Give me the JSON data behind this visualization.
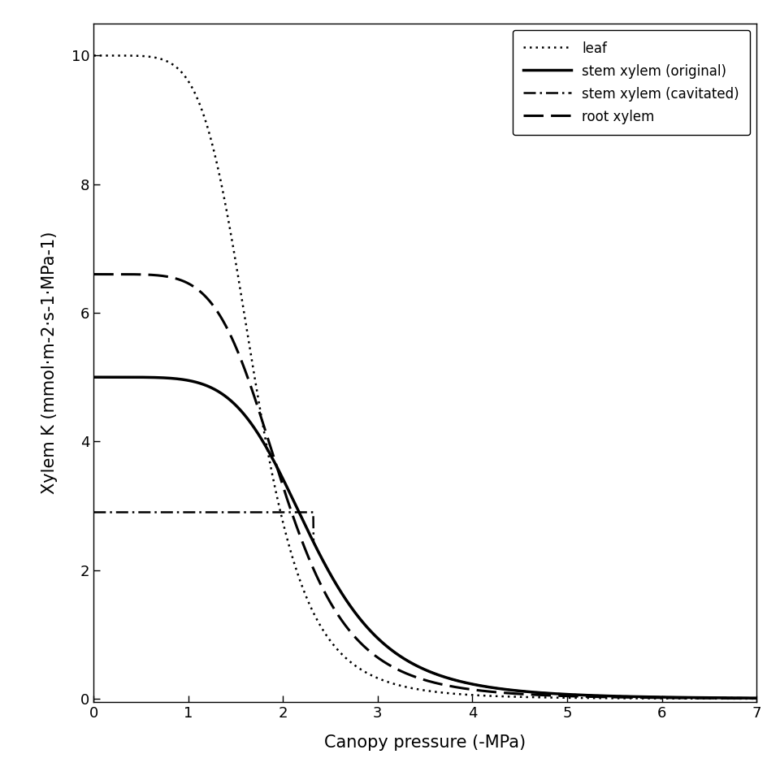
{
  "title": "",
  "xlabel": "Canopy pressure (-MPa)",
  "ylabel": "Xylem K (mmol·m-2·s-1·MPa-1)",
  "xlim": [
    0,
    7
  ],
  "ylim": [
    -0.05,
    10.5
  ],
  "xticks": [
    0,
    1,
    2,
    3,
    4,
    5,
    6,
    7
  ],
  "yticks": [
    0,
    2,
    4,
    6,
    8,
    10
  ],
  "figsize": [
    9.6,
    9.6
  ],
  "dpi": 100,
  "curves": {
    "leaf": {
      "kmax": 10.0,
      "x50": 1.7,
      "slope": 6.0,
      "linestyle": "densely dotted",
      "linewidth": 1.8,
      "color": "black",
      "label": "leaf"
    },
    "stem_original": {
      "kmax": 5.0,
      "x50": 2.3,
      "slope": 5.5,
      "linestyle": "solid",
      "linewidth": 2.5,
      "color": "black",
      "label": "stem xylem (original)"
    },
    "stem_cavitated": {
      "kmax": 5.0,
      "x50": 2.3,
      "slope": 5.5,
      "kmin_cap": 2.9,
      "xcap": 2.32,
      "linestyle": "dashdotted",
      "linewidth": 1.8,
      "color": "black",
      "label": "stem xylem (cavitated)"
    },
    "root": {
      "kmax": 6.6,
      "x50": 2.0,
      "slope": 5.5,
      "linestyle": "dashed",
      "linewidth": 2.2,
      "color": "black",
      "label": "root xylem"
    }
  },
  "legend_loc": "upper right",
  "background_color": "#ffffff",
  "plot_bg_color": "#ffffff"
}
